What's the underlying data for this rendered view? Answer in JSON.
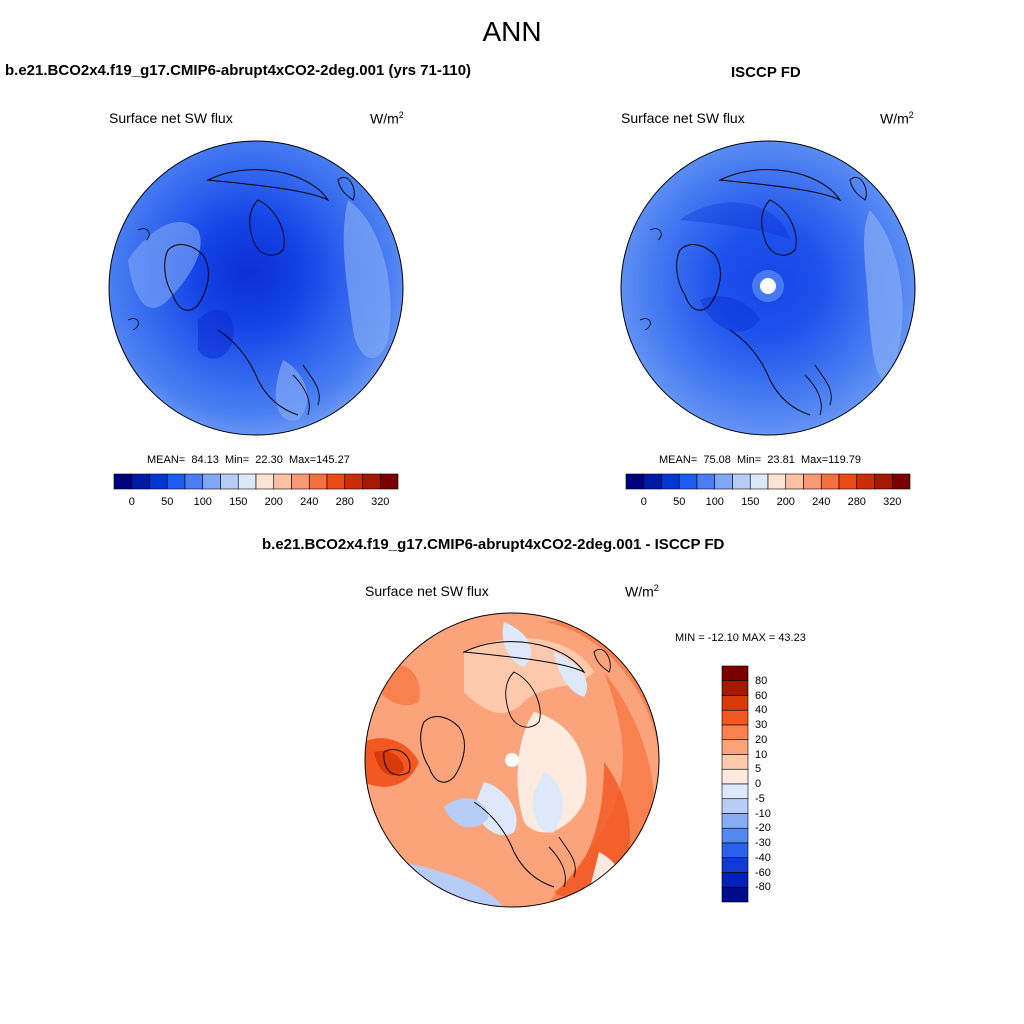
{
  "title": "ANN",
  "panels": [
    {
      "title": "b.e21.BCO2x4.f19_g17.CMIP6-abrupt4xCO2-2deg.001 (yrs 71-110)",
      "subtitle": "Surface net SW flux",
      "units_base": "W/m",
      "units_exp": "2",
      "stats": {
        "mean_label": "MEAN=",
        "mean": "84.13",
        "min_label": "Min=",
        "min": "22.30",
        "max_label": "Max=",
        "max": "145.27"
      }
    },
    {
      "title": "ISCCP FD",
      "subtitle": "Surface net SW flux",
      "units_base": "W/m",
      "units_exp": "2",
      "stats": {
        "mean_label": "MEAN=",
        "mean": "75.08",
        "min_label": "Min=",
        "min": "23.81",
        "max_label": "Max=",
        "max": "119.79"
      }
    },
    {
      "title": "b.e21.BCO2x4.f19_g17.CMIP6-abrupt4xCO2-2deg.001 - ISCCP FD",
      "subtitle": "Surface net SW flux",
      "units_base": "W/m",
      "units_exp": "2",
      "stats_text": "MIN = -12.10 MAX =  43.23"
    }
  ],
  "colorbar_abs": {
    "tick_labels": [
      "0",
      "50",
      "100",
      "150",
      "200",
      "240",
      "280",
      "320"
    ],
    "colors": [
      "#00007f",
      "#0018a8",
      "#0036d6",
      "#1d5cf0",
      "#4a7ef2",
      "#80a8f5",
      "#b6ccf7",
      "#dbe8fb",
      "#fde3d3",
      "#fcc0a2",
      "#fa9a72",
      "#f5703f",
      "#ec4a15",
      "#cc2d05",
      "#a51800",
      "#7a0000"
    ]
  },
  "colorbar_diff": {
    "labels": [
      "80",
      "60",
      "40",
      "30",
      "20",
      "10",
      "5",
      "0",
      "-5",
      "-10",
      "-20",
      "-30",
      "-40",
      "-60",
      "-80"
    ],
    "colors": [
      "#7a0000",
      "#a51800",
      "#d93a0a",
      "#f35722",
      "#f8814f",
      "#fba47c",
      "#fdc9ad",
      "#feeadf",
      "#dde9fb",
      "#b7cdf7",
      "#87adf4",
      "#5487f0",
      "#2a62ec",
      "#0f3ad6",
      "#0020b8",
      "#000a8a"
    ]
  },
  "map_fill": {
    "left_base": "#4a7ef2",
    "right_base": "#4a7ef2",
    "diff_base": "#fba47c"
  }
}
